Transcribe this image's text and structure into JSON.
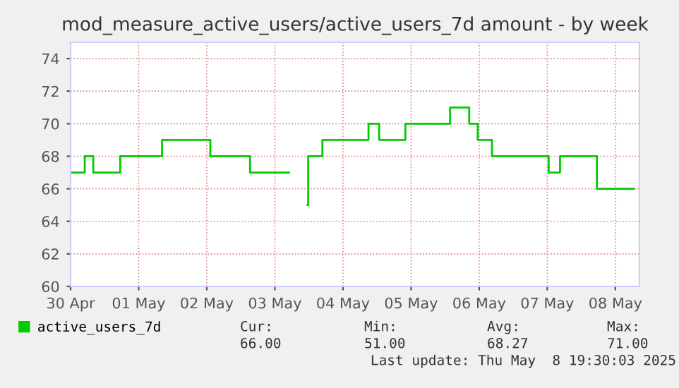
{
  "chart_data": {
    "type": "step",
    "title": "mod_measure_active_users/active_users_7d amount - by week",
    "x": [
      "2025-04-30T00:00",
      "2025-04-30T05:00",
      "2025-04-30T08:00",
      "2025-04-30T17:30",
      "2025-05-01T08:15",
      "2025-05-02T01:15",
      "2025-05-02T15:15",
      "2025-05-03T04:45",
      "2025-05-03T05:00",
      "2025-05-03T11:30",
      "2025-05-03T11:45",
      "2025-05-03T16:45",
      "2025-05-04T09:00",
      "2025-05-04T12:45",
      "2025-05-04T22:00",
      "2025-05-05T13:45",
      "2025-05-05T20:30",
      "2025-05-05T23:30",
      "2025-05-06T04:30",
      "2025-05-07T00:30",
      "2025-05-07T04:30",
      "2025-05-07T17:30",
      "2025-05-08T06:30"
    ],
    "series": [
      {
        "name": "active_users_7d",
        "color": "#00cc00",
        "values": [
          67,
          68,
          67,
          68,
          69,
          68,
          67,
          67,
          null,
          65,
          68,
          69,
          70,
          69,
          70,
          71,
          70,
          69,
          68,
          67,
          68,
          66,
          66
        ]
      }
    ],
    "xlim": [
      "2025-04-30T00:00",
      "2025-05-08T08:30"
    ],
    "xticks": [
      {
        "value": "2025-04-30T00:00",
        "label": "30 Apr"
      },
      {
        "value": "2025-05-01T00:00",
        "label": "01 May"
      },
      {
        "value": "2025-05-02T00:00",
        "label": "02 May"
      },
      {
        "value": "2025-05-03T00:00",
        "label": "03 May"
      },
      {
        "value": "2025-05-04T00:00",
        "label": "04 May"
      },
      {
        "value": "2025-05-05T00:00",
        "label": "05 May"
      },
      {
        "value": "2025-05-06T00:00",
        "label": "06 May"
      },
      {
        "value": "2025-05-07T00:00",
        "label": "07 May"
      },
      {
        "value": "2025-05-08T00:00",
        "label": "08 May"
      }
    ],
    "ylim": [
      60,
      75
    ],
    "yticks": [
      60,
      62,
      64,
      66,
      68,
      70,
      72,
      74
    ],
    "grid": true,
    "legend": "bottom left",
    "annotations": [
      "Cur:",
      "Min:",
      "Avg:",
      "Max:",
      "66.00",
      "51.00",
      "68.27",
      "71.00",
      "Last update: Thu May  8 19:30:03 2025"
    ]
  }
}
